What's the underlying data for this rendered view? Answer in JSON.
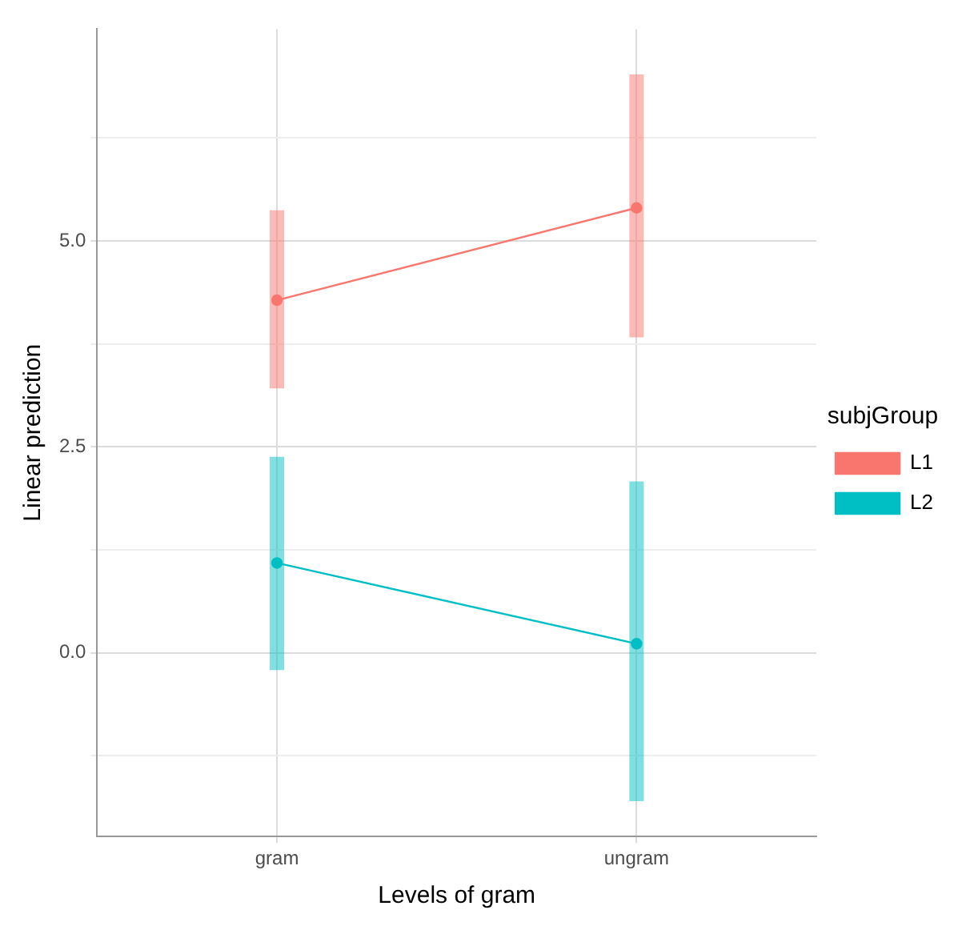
{
  "chart_data": {
    "type": "line",
    "xlabel": "Levels of gram",
    "ylabel": "Linear prediction",
    "legend_title": "subjGroup",
    "categories": [
      "gram",
      "ungram"
    ],
    "series": [
      {
        "name": "L1",
        "color": "#f8766d",
        "values": [
          4.28,
          5.4
        ],
        "errors": [
          [
            3.21,
            5.37
          ],
          [
            3.83,
            7.02
          ]
        ]
      },
      {
        "name": "L2",
        "color": "#00bfc4",
        "values": [
          1.09,
          0.11
        ],
        "errors": [
          [
            -0.21,
            2.38
          ],
          [
            -1.8,
            2.08
          ]
        ]
      }
    ],
    "ylim": [
      -2.23,
      7.57
    ],
    "yticks": [
      {
        "value": -1.25,
        "label": null
      },
      {
        "value": 0,
        "label": "0.0"
      },
      {
        "value": 1.25,
        "label": null
      },
      {
        "value": 2.5,
        "label": "2.5"
      },
      {
        "value": 3.75,
        "label": null
      },
      {
        "value": 5,
        "label": "5.0"
      },
      {
        "value": 6.25,
        "label": null
      }
    ],
    "grid": true,
    "legend": "right",
    "marker": "circle",
    "line_style": "solid"
  }
}
